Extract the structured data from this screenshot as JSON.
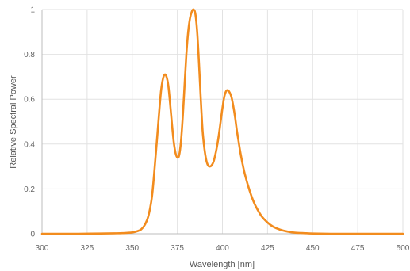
{
  "chart_data": {
    "type": "line",
    "title": "",
    "xlabel": "Wavelength [nm]",
    "ylabel": "Relative Spectral Power",
    "xlim": [
      300,
      500
    ],
    "ylim": [
      0,
      1
    ],
    "x_ticks": [
      "300",
      "325",
      "350",
      "375",
      "400",
      "425",
      "450",
      "475",
      "500"
    ],
    "y_ticks": [
      "0",
      "0.2",
      "0.4",
      "0.6",
      "0.8",
      "1"
    ],
    "x_tick_values": [
      300,
      325,
      350,
      375,
      400,
      425,
      450,
      475,
      500
    ],
    "y_tick_values": [
      0,
      0.2,
      0.4,
      0.6,
      0.8,
      1
    ],
    "grid": true,
    "legend": "none",
    "colors": {
      "series": "#f28c1e",
      "grid": "#e2e2e2",
      "axis": "#bdbdbd",
      "text": "#666666"
    },
    "series": [
      {
        "x": [
          300,
          320,
          340,
          345,
          350,
          353,
          355,
          357,
          359,
          361,
          363,
          365,
          366,
          367,
          368,
          369,
          370,
          371,
          372,
          373,
          374,
          375,
          376,
          377,
          378,
          379,
          380,
          381,
          382,
          383,
          384,
          385,
          386,
          387,
          388,
          389,
          390,
          391,
          392,
          393,
          394,
          395,
          396,
          397,
          398,
          399,
          400,
          401,
          402,
          403,
          404,
          405,
          406,
          407,
          408,
          409,
          410,
          412,
          414,
          416,
          418,
          420,
          422,
          425,
          428,
          432,
          436,
          440,
          445,
          450,
          460,
          475,
          500
        ],
        "y": [
          0,
          0,
          0.002,
          0.003,
          0.006,
          0.012,
          0.02,
          0.04,
          0.08,
          0.17,
          0.35,
          0.55,
          0.64,
          0.69,
          0.71,
          0.7,
          0.66,
          0.58,
          0.49,
          0.41,
          0.36,
          0.34,
          0.35,
          0.41,
          0.52,
          0.66,
          0.8,
          0.9,
          0.96,
          0.99,
          1.0,
          0.98,
          0.9,
          0.76,
          0.6,
          0.46,
          0.38,
          0.33,
          0.305,
          0.3,
          0.305,
          0.32,
          0.35,
          0.39,
          0.44,
          0.5,
          0.56,
          0.61,
          0.635,
          0.64,
          0.63,
          0.61,
          0.57,
          0.52,
          0.46,
          0.41,
          0.36,
          0.28,
          0.22,
          0.17,
          0.13,
          0.1,
          0.075,
          0.05,
          0.032,
          0.018,
          0.01,
          0.005,
          0.003,
          0.001,
          0,
          0,
          0
        ]
      }
    ]
  }
}
